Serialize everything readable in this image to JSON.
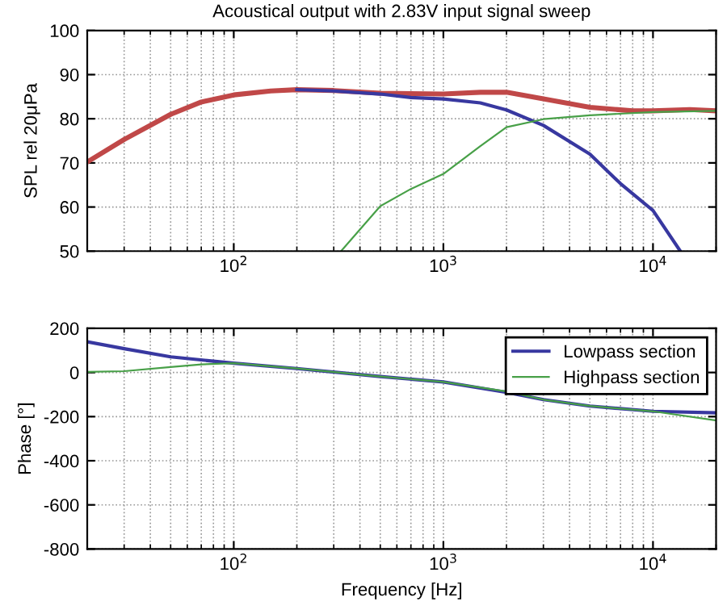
{
  "chart_data": [
    {
      "type": "line",
      "title": "Acoustical output with 2.83V input signal sweep",
      "ylabel": "SPL rel 20μPa",
      "log": "x",
      "grid": true,
      "line_style": "solid",
      "xlim": [
        20,
        20000
      ],
      "xticks": [
        {
          "value": 100,
          "label": "10$^{2}$"
        },
        {
          "value": 1000,
          "label": "10$^{3}$"
        },
        {
          "value": 10000,
          "label": "10$^{4}$"
        }
      ],
      "ylim": [
        50,
        100
      ],
      "yticks": [
        50,
        60,
        70,
        80,
        90,
        100
      ],
      "series": [
        {
          "color": "#c04848",
          "x": [
            20,
            30,
            50,
            70,
            100,
            150,
            200,
            300,
            500,
            1000,
            1500,
            2000,
            3000,
            5000,
            8000,
            10000,
            15000,
            20000
          ],
          "values": [
            70.2,
            75.3,
            81,
            83.8,
            85.4,
            86.3,
            86.6,
            86.4,
            85.8,
            85.6,
            86,
            86,
            84.5,
            82.6,
            81.8,
            81.8,
            82.1,
            81.8
          ]
        },
        {
          "color": "#3838a0",
          "x": [
            200,
            300,
            500,
            700,
            1000,
            1500,
            2000,
            3000,
            5000,
            7000,
            10000,
            13500
          ],
          "values": [
            86.6,
            86.3,
            85.6,
            84.8,
            84.5,
            83.6,
            82,
            78.5,
            72,
            65.3,
            59.2,
            50
          ]
        },
        {
          "color": "#48a048",
          "x": [
            325,
            500,
            700,
            1000,
            1500,
            2000,
            3000,
            5000,
            10000,
            20000
          ],
          "values": [
            50,
            60.2,
            64.1,
            67.5,
            73.8,
            78.1,
            79.9,
            80.8,
            81.5,
            81.8
          ]
        }
      ]
    },
    {
      "type": "line",
      "xlabel": "Frequency [Hz]",
      "ylabel": "Phase [°]",
      "log": "x",
      "grid": true,
      "legend": "top right",
      "line_style": "solid",
      "xlim": [
        20,
        20000
      ],
      "xticks": [
        {
          "value": 100,
          "label": "10$^{2}$"
        },
        {
          "value": 1000,
          "label": "10$^{3}$"
        },
        {
          "value": 10000,
          "label": "10$^{4}$"
        }
      ],
      "ylim": [
        -800,
        200
      ],
      "yticks": [
        -800,
        -600,
        -400,
        -200,
        0,
        200
      ],
      "series": [
        {
          "name": "Lowpass section",
          "color": "#3838a0",
          "x": [
            20,
            30,
            50,
            100,
            200,
            500,
            1000,
            2000,
            3000,
            5000,
            10000,
            20000
          ],
          "values": [
            139,
            108,
            71,
            42,
            18,
            -18,
            -43,
            -90,
            -123,
            -152,
            -176,
            -183
          ]
        },
        {
          "name": "Highpass section",
          "color": "#48a048",
          "x": [
            20,
            30,
            50,
            70,
            100,
            200,
            500,
            1000,
            2000,
            3000,
            5000,
            10000,
            20000
          ],
          "values": [
            3,
            6,
            25,
            37,
            42,
            18,
            -18,
            -43,
            -86,
            -123,
            -152,
            -176,
            -217
          ]
        }
      ]
    }
  ]
}
